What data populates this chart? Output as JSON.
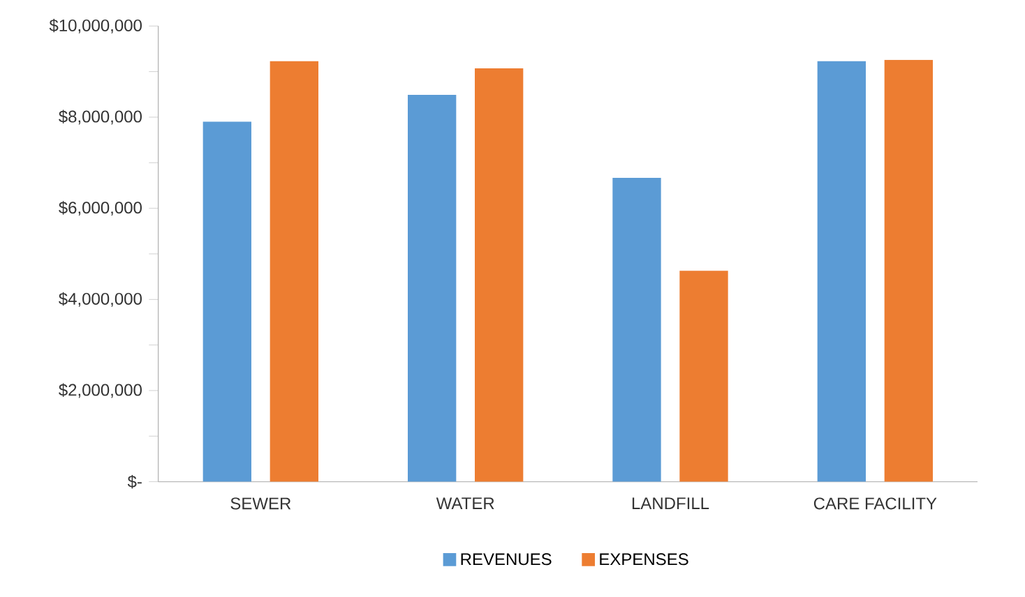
{
  "chart_data": {
    "type": "bar",
    "categories": [
      "SEWER",
      "WATER",
      "LANDFILL",
      "CARE FACILITY"
    ],
    "series": [
      {
        "name": "REVENUES",
        "color": "#5b9bd5",
        "values": [
          7900000,
          8490000,
          6670000,
          9230000
        ]
      },
      {
        "name": "EXPENSES",
        "color": "#ed7d31",
        "values": [
          9230000,
          9070000,
          4630000,
          9260000
        ]
      }
    ],
    "ylim": [
      0,
      10000000
    ],
    "yticks": [
      {
        "value": 0,
        "label": "$-"
      },
      {
        "value": 1000000,
        "label": null
      },
      {
        "value": 2000000,
        "label": "$2,000,000"
      },
      {
        "value": 3000000,
        "label": null
      },
      {
        "value": 4000000,
        "label": "$4,000,000"
      },
      {
        "value": 5000000,
        "label": null
      },
      {
        "value": 6000000,
        "label": "$6,000,000"
      },
      {
        "value": 7000000,
        "label": null
      },
      {
        "value": 8000000,
        "label": "$8,000,000"
      },
      {
        "value": 9000000,
        "label": null
      },
      {
        "value": 10000000,
        "label": "$10,000,000"
      }
    ],
    "grid": false,
    "legend": "bottom"
  }
}
